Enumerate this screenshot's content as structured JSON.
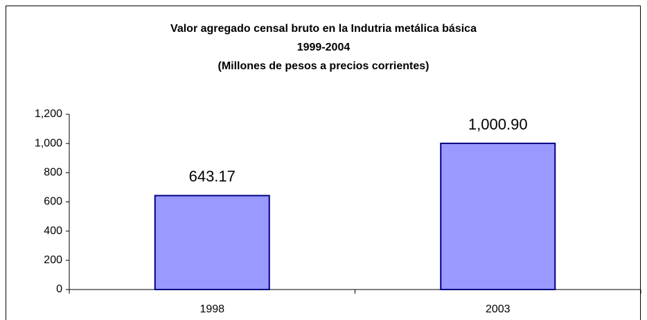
{
  "chart_data": {
    "type": "bar",
    "title": "Valor agregado censal bruto en la Indutria metálica básica",
    "subtitle": [
      "1999-2004",
      "(Millones de pesos a precios corrientes)"
    ],
    "categories": [
      "1998",
      "2003"
    ],
    "values": [
      643.17,
      1000.9
    ],
    "value_labels": [
      "643.17",
      "1,000.90"
    ],
    "color": "#9999ff",
    "edge_color": "#000080",
    "ylim": [
      0,
      1200
    ],
    "yticks": [
      0,
      200,
      400,
      600,
      800,
      {
        "value": 1000,
        "label": "1,000"
      },
      {
        "value": 1200,
        "label": "1,200"
      }
    ],
    "grid": false
  }
}
